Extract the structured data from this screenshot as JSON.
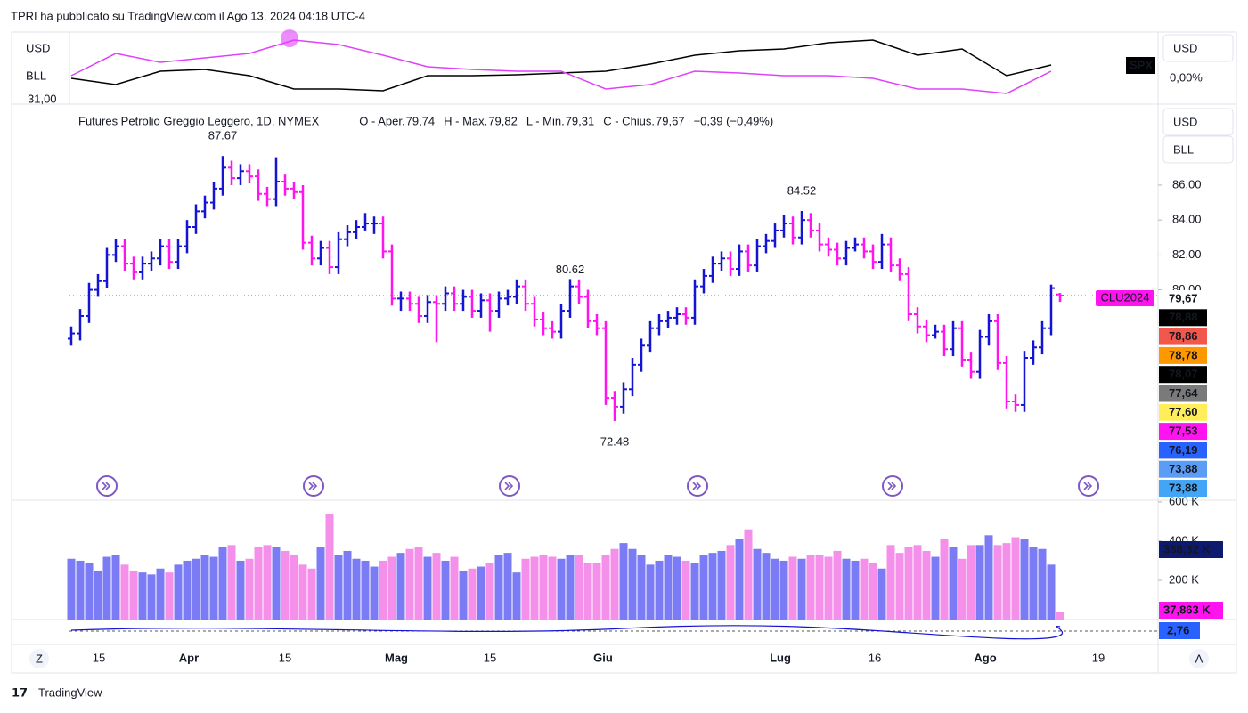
{
  "header": "TPRI ha pubblicato su TradingView.com il Ago 13, 2024 04:18 UTC-4",
  "footer": "TradingView",
  "chart_data": [
    {
      "type": "ohlc",
      "title": "Futures Petrolio Greggio Leggero, 1D, NYMEX",
      "legend": [
        {
          "text": "O - Aper.",
          "color": "#131722"
        },
        {
          "text": "79,74",
          "color": "#e91ee0"
        },
        {
          "text": "H - Max.",
          "color": "#131722"
        },
        {
          "text": "79,82",
          "color": "#e91ee0"
        },
        {
          "text": "L - Min.",
          "color": "#131722"
        },
        {
          "text": "79,31",
          "color": "#e91ee0"
        },
        {
          "text": "C - Chius.",
          "color": "#131722"
        },
        {
          "text": "79,67",
          "color": "#e91ee0"
        },
        {
          "text": "−0,39 (−0,49%)",
          "color": "#e91ee0"
        }
      ],
      "up_color": "#1414d2",
      "down_color": "#ff14f0",
      "ylim": [
        68.04,
        90.64
      ],
      "yticks": [
        {
          "value": 80,
          "label": "80,00"
        },
        {
          "value": 82,
          "label": "82,00"
        },
        {
          "value": 84,
          "label": "84,00"
        },
        {
          "value": 86,
          "label": "86,00"
        }
      ],
      "axis_units": [
        "USD",
        "BLL"
      ],
      "annotations": [
        "87.67",
        "84.52",
        "80.62",
        "72.48"
      ],
      "symbol_tag": "CLU2024",
      "price_tags": [
        {
          "label": "79,67",
          "color": "#ffffff",
          "text": "#e91ee0"
        },
        {
          "label": "78,88",
          "color": "#000000",
          "text": "#ffffff"
        },
        {
          "label": "78,86",
          "color": "#f2574b",
          "text": "#ffffff"
        },
        {
          "label": "78,78",
          "color": "#ff9800",
          "text": "#ffffff"
        },
        {
          "label": "78,07",
          "color": "#000000",
          "text": "#ffffff"
        },
        {
          "label": "77,64",
          "color": "#7a7a7a",
          "text": "#ffffff"
        },
        {
          "label": "77,60",
          "color": "#ffee58",
          "text": "#000000"
        },
        {
          "label": "77,53",
          "color": "#ff14f0",
          "text": "#ffffff"
        },
        {
          "label": "76,19",
          "color": "#2962ff",
          "text": "#ffffff"
        },
        {
          "label": "73,88",
          "color": "#5b9cf6",
          "text": "#ffffff"
        },
        {
          "label": "73,88",
          "color": "#42a5f5",
          "text": "#ffffff"
        }
      ],
      "x_labels": [
        "15",
        "Apr",
        "15",
        "Mag",
        "15",
        "Giu",
        "Lug",
        "16",
        "Ago",
        "19"
      ],
      "ohlc": [
        [
          77.2,
          77.9,
          76.8,
          77.5
        ],
        [
          77.5,
          78.9,
          77.1,
          78.5
        ],
        [
          78.5,
          80.4,
          78.1,
          80
        ],
        [
          80,
          80.9,
          79.6,
          80.5
        ],
        [
          80.5,
          82.4,
          80.1,
          82
        ],
        [
          82,
          82.9,
          81.6,
          82.5
        ],
        [
          82.5,
          82.9,
          81.1,
          81.5
        ],
        [
          81.5,
          81.9,
          80.6,
          81
        ],
        [
          81,
          81.9,
          80.6,
          81.5
        ],
        [
          81.5,
          82.2,
          81.1,
          81.8
        ],
        [
          81.8,
          82.9,
          81.4,
          82.5
        ],
        [
          82.5,
          82.9,
          81.2,
          81.6
        ],
        [
          81.6,
          82.9,
          81.2,
          82.5
        ],
        [
          82.5,
          84,
          82.1,
          83.6
        ],
        [
          83.6,
          84.9,
          83.2,
          84.5
        ],
        [
          84.5,
          85.4,
          84.1,
          85
        ],
        [
          85,
          86.2,
          84.6,
          85.8
        ],
        [
          85.8,
          87.67,
          85.4,
          87
        ],
        [
          87,
          87.4,
          86,
          86.4
        ],
        [
          86.4,
          87.2,
          86,
          86.8
        ],
        [
          86.8,
          87.2,
          86.1,
          86.5
        ],
        [
          86.5,
          86.9,
          85.1,
          85.5
        ],
        [
          85.5,
          85.9,
          84.8,
          85.2
        ],
        [
          85.2,
          87.6,
          84.8,
          86.2
        ],
        [
          86.2,
          86.6,
          85.4,
          85.8
        ],
        [
          85.8,
          86.2,
          85.2,
          85.6
        ],
        [
          85.6,
          86,
          82.3,
          82.7
        ],
        [
          82.7,
          83.1,
          81.4,
          81.8
        ],
        [
          81.8,
          82.8,
          81.4,
          82.4
        ],
        [
          82.4,
          82.8,
          80.9,
          81.3
        ],
        [
          81.3,
          83.3,
          80.9,
          82.9
        ],
        [
          82.9,
          83.7,
          82.5,
          83.3
        ],
        [
          83.3,
          84,
          82.9,
          83.6
        ],
        [
          83.6,
          84.4,
          83.4,
          83.8
        ],
        [
          83.8,
          84.2,
          83.2,
          83.8
        ],
        [
          83.8,
          84.2,
          81.8,
          82.2
        ],
        [
          82.2,
          82.6,
          79.1,
          79.5
        ],
        [
          79.5,
          79.9,
          78.8,
          79.5
        ],
        [
          79.5,
          79.9,
          78.8,
          79.2
        ],
        [
          79.2,
          79.6,
          78.1,
          78.5
        ],
        [
          78.5,
          79.7,
          78.1,
          79.3
        ],
        [
          79.3,
          79.7,
          77,
          79.2
        ],
        [
          79.2,
          80.2,
          78.8,
          79.8
        ],
        [
          79.8,
          80.2,
          78.8,
          79.2
        ],
        [
          79.2,
          80,
          78.8,
          79.6
        ],
        [
          79.6,
          80,
          78.4,
          78.8
        ],
        [
          78.8,
          79.8,
          78.4,
          79.4
        ],
        [
          79.4,
          79.8,
          77.6,
          78.8
        ],
        [
          78.8,
          79.9,
          78.4,
          79.5
        ],
        [
          79.5,
          80,
          79.1,
          79.6
        ],
        [
          79.6,
          80.6,
          79.2,
          80.2
        ],
        [
          80.2,
          80.6,
          78.8,
          79.2
        ],
        [
          79.2,
          79.6,
          77.9,
          78.3
        ],
        [
          78.3,
          78.7,
          77.4,
          77.8
        ],
        [
          77.8,
          78.2,
          77.2,
          77.6
        ],
        [
          77.6,
          79.2,
          77.2,
          78.8
        ],
        [
          78.8,
          80.62,
          78.4,
          80.2
        ],
        [
          80.2,
          80.6,
          79.2,
          79.6
        ],
        [
          79.6,
          80,
          77.8,
          78.2
        ],
        [
          78.2,
          78.6,
          77.4,
          77.8
        ],
        [
          77.8,
          78.2,
          73.4,
          73.8
        ],
        [
          73.8,
          74.2,
          72.48,
          73.3
        ],
        [
          73.3,
          74.7,
          72.9,
          74.3
        ],
        [
          74.3,
          76.1,
          73.9,
          75.7
        ],
        [
          75.7,
          77.2,
          75.3,
          76.8
        ],
        [
          76.8,
          78.2,
          76.4,
          77.8
        ],
        [
          77.8,
          78.6,
          77.4,
          78.2
        ],
        [
          78.2,
          78.8,
          77.8,
          78.4
        ],
        [
          78.4,
          79,
          78,
          78.6
        ],
        [
          78.6,
          79,
          78,
          78.4
        ],
        [
          78.4,
          80.6,
          78,
          80.2
        ],
        [
          80.2,
          81.2,
          79.8,
          80.8
        ],
        [
          80.8,
          81.9,
          80.4,
          81.5
        ],
        [
          81.5,
          82.2,
          81.1,
          81.8
        ],
        [
          81.8,
          82.2,
          80.8,
          81.2
        ],
        [
          81.2,
          82.6,
          80.8,
          82.2
        ],
        [
          82.2,
          82.6,
          81,
          81.4
        ],
        [
          81.4,
          82.9,
          81,
          82.5
        ],
        [
          82.5,
          83.2,
          82.1,
          82.8
        ],
        [
          82.8,
          83.8,
          82.4,
          83.4
        ],
        [
          83.4,
          84.3,
          83,
          83.8
        ],
        [
          83.8,
          84.2,
          82.6,
          83
        ],
        [
          83,
          84.52,
          82.6,
          84
        ],
        [
          84,
          84.4,
          83,
          83.4
        ],
        [
          83.4,
          83.8,
          82.2,
          82.6
        ],
        [
          82.6,
          83,
          81.9,
          82.3
        ],
        [
          82.3,
          82.7,
          81.4,
          81.8
        ],
        [
          81.8,
          82.8,
          81.4,
          82.4
        ],
        [
          82.4,
          83,
          82.2,
          82.6
        ],
        [
          82.6,
          83,
          81.8,
          82.2
        ],
        [
          82.2,
          82.6,
          81.2,
          81.6
        ],
        [
          81.6,
          83.2,
          81.2,
          82.6
        ],
        [
          82.6,
          83,
          81,
          81.4
        ],
        [
          81.4,
          81.8,
          80.5,
          80.9
        ],
        [
          80.9,
          81.3,
          78.2,
          78.6
        ],
        [
          78.6,
          79,
          77.5,
          77.9
        ],
        [
          77.9,
          78.3,
          77,
          77.4
        ],
        [
          77.4,
          78,
          77.2,
          77.6
        ],
        [
          77.6,
          78,
          76.2,
          76.6
        ],
        [
          76.6,
          78.2,
          76.2,
          77.8
        ],
        [
          77.8,
          78.2,
          75.6,
          76
        ],
        [
          76,
          76.4,
          74.9,
          75.3
        ],
        [
          75.3,
          77.7,
          74.9,
          77.3
        ],
        [
          77.3,
          78.6,
          76.8,
          78.2
        ],
        [
          78.2,
          78.6,
          75.4,
          75.8
        ],
        [
          75.8,
          76.2,
          73.2,
          73.6
        ],
        [
          73.6,
          74,
          73,
          73.4
        ],
        [
          73.4,
          76.5,
          73,
          76.1
        ],
        [
          76.1,
          77.1,
          75.7,
          76.7
        ],
        [
          76.7,
          78.2,
          76.3,
          77.8
        ],
        [
          77.8,
          80.3,
          77.4,
          80.1
        ],
        [
          79.74,
          79.82,
          79.31,
          79.67
        ]
      ]
    },
    {
      "type": "volume",
      "up_color": "#7b7bf5",
      "down_color": "#f48fea",
      "ylim": [
        0,
        604
      ],
      "yticks": [
        {
          "value": 200,
          "label": "200 K"
        },
        {
          "value": 400,
          "label": "400 K"
        },
        {
          "value": 600,
          "label": "600 K"
        }
      ],
      "tags": [
        {
          "label": "358,32 K",
          "color": "#0d1a6e"
        },
        {
          "label": "37,863 K",
          "color": "#ff14f0"
        }
      ],
      "values": [
        310,
        300,
        290,
        250,
        320,
        330,
        280,
        250,
        240,
        230,
        260,
        240,
        280,
        300,
        310,
        330,
        320,
        370,
        380,
        300,
        310,
        370,
        380,
        370,
        350,
        330,
        280,
        260,
        370,
        540,
        330,
        350,
        310,
        300,
        270,
        300,
        320,
        340,
        360,
        370,
        320,
        340,
        300,
        320,
        250,
        260,
        270,
        290,
        330,
        340,
        240,
        310,
        320,
        330,
        320,
        310,
        330,
        330,
        290,
        290,
        330,
        360,
        390,
        360,
        330,
        280,
        300,
        330,
        320,
        300,
        290,
        330,
        340,
        350,
        380,
        410,
        460,
        360,
        340,
        310,
        300,
        320,
        310,
        330,
        330,
        320,
        350,
        310,
        300,
        310,
        290,
        260,
        380,
        340,
        370,
        380,
        350,
        320,
        410,
        370,
        310,
        380,
        380,
        430,
        380,
        390,
        420,
        410,
        370,
        360,
        280,
        37.863
      ]
    },
    {
      "type": "line",
      "axis_units": [
        "USD",
        "BLL"
      ],
      "axis_label": "31,00",
      "tag": "SPX",
      "zero_label": "0,00%",
      "ylim": [
        -9.75,
        9.75
      ],
      "series": [
        {
          "name": "SPX",
          "color": "#000000",
          "values": [
            -2.75,
            -4.5,
            -0.75,
            -0.25,
            -2,
            -5.75,
            -5.75,
            -6.25,
            -2,
            -2,
            -1.75,
            -1.25,
            -0.75,
            1.25,
            3.75,
            5,
            5.5,
            7.25,
            8,
            3.75,
            5.5,
            -2,
            1
          ]
        },
        {
          "name": "CLU2024",
          "color": "#e040fb",
          "values": [
            -2,
            4.25,
            1.75,
            3,
            4.25,
            8,
            6.75,
            3.75,
            0.5,
            -0.25,
            -0.75,
            -0.75,
            -5.75,
            -4.5,
            -0.75,
            -1.25,
            -2,
            -2,
            -2.75,
            -5.75,
            -5.75,
            -7,
            -0.75
          ]
        }
      ]
    },
    {
      "type": "indicator",
      "tag": "2,76",
      "tag_color": "#2962ff"
    }
  ],
  "scale_buttons": [
    "Z",
    "A"
  ]
}
